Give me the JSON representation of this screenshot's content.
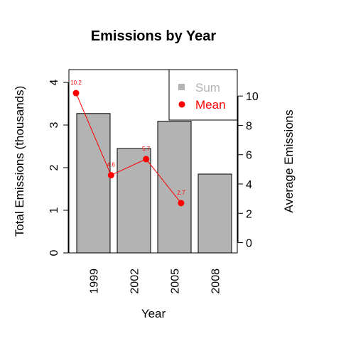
{
  "chart_data": {
    "type": "bar",
    "title": "Emissions by Year",
    "xlabel": "Year",
    "ylabel": "Total Emissions (thousands)",
    "y2label": "Average Emissions",
    "categories": [
      "1999",
      "2002",
      "2005",
      "2008"
    ],
    "series": [
      {
        "name": "Sum",
        "type": "bar",
        "axis": "left",
        "color": "#b3b3b3",
        "values": [
          3.27,
          2.45,
          3.09,
          1.85
        ]
      },
      {
        "name": "Mean",
        "type": "line",
        "axis": "right",
        "color": "#ff0000",
        "values": [
          10.2,
          4.6,
          5.7,
          2.7
        ],
        "labels": [
          "10.2",
          "4.6",
          "5.7",
          "2.7"
        ]
      }
    ],
    "ylim": [
      0,
      4.3
    ],
    "yticks": [
      "0",
      "1",
      "2",
      "3",
      "4"
    ],
    "y2lim": [
      -0.7,
      11.8
    ],
    "y2ticks": [
      "0",
      "2",
      "4",
      "6",
      "8",
      "10"
    ],
    "legend": {
      "placement": "top-right"
    },
    "grid": false
  }
}
